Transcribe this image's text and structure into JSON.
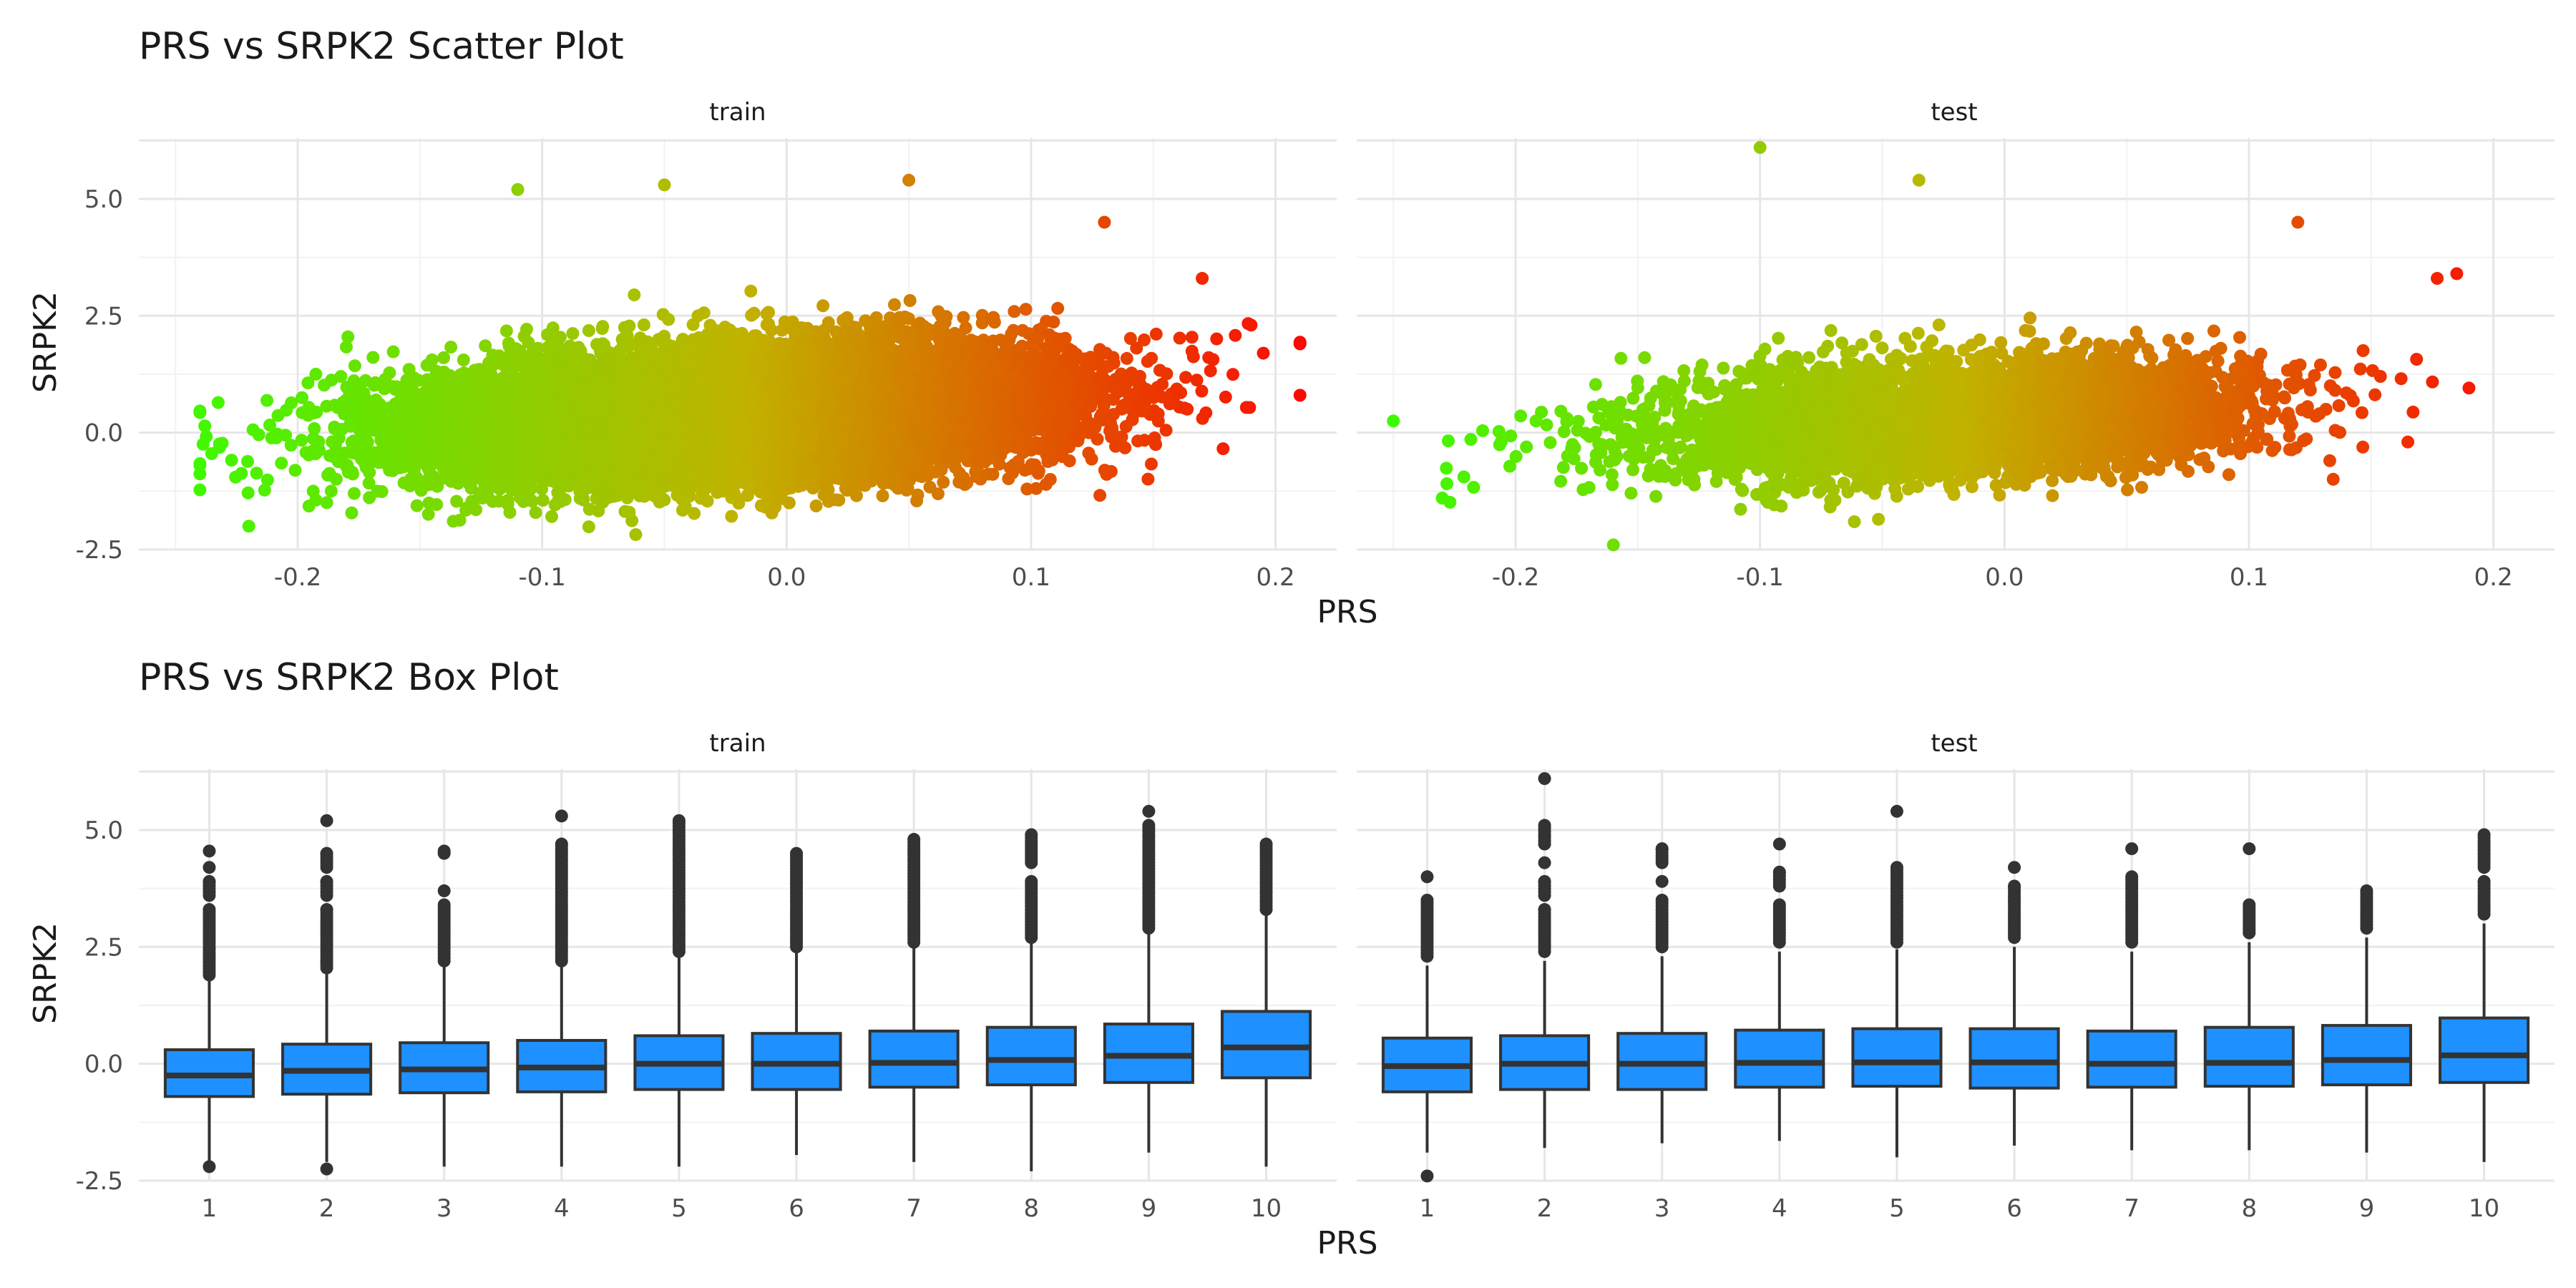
{
  "chart_data": [
    {
      "type": "scatter",
      "title": "PRS vs SRPK2 Scatter Plot",
      "xlabel": "PRS",
      "ylabel": "SRPK2",
      "xlim": [
        -0.265,
        0.225
      ],
      "ylim": [
        -2.5,
        6.3
      ],
      "x_ticks": [
        "-0.2",
        "-0.1",
        "0.0",
        "0.1",
        "0.2"
      ],
      "x_tick_values": [
        -0.2,
        -0.1,
        0.0,
        0.1,
        0.2
      ],
      "y_ticks": [
        "-2.5",
        "0.0",
        "2.5",
        "5.0"
      ],
      "y_tick_values": [
        -2.5,
        0.0,
        2.5,
        5.0
      ],
      "grid": true,
      "color_scale": {
        "low": "#33ff00",
        "mid": "#c0b400",
        "high": "#ff0000",
        "encodes": "PRS"
      },
      "panels": [
        {
          "label": "train",
          "n_points_estimate": 17000,
          "x_mean": -0.02,
          "x_sd": 0.062,
          "y_mean": 0.2,
          "y_sd": 0.85,
          "x_range": [
            -0.24,
            0.21
          ],
          "y_range": [
            -2.3,
            5.4
          ],
          "extreme_points": [
            [
              0.21,
              1.9
            ],
            [
              0.21,
              0.8
            ],
            [
              0.195,
              1.7
            ],
            [
              0.19,
              2.3
            ],
            [
              0.17,
              3.3
            ],
            [
              -0.24,
              -0.7
            ],
            [
              -0.22,
              -2.0
            ],
            [
              -0.11,
              5.2
            ],
            [
              -0.05,
              5.3
            ],
            [
              0.05,
              5.4
            ],
            [
              0.13,
              4.5
            ]
          ]
        },
        {
          "label": "test",
          "n_points_estimate": 4500,
          "x_mean": -0.02,
          "x_sd": 0.062,
          "y_mean": 0.1,
          "y_sd": 0.8,
          "x_range": [
            -0.25,
            0.19
          ],
          "y_range": [
            -2.4,
            6.1
          ],
          "extreme_points": [
            [
              -0.25,
              0.25
            ],
            [
              -0.1,
              6.1
            ],
            [
              -0.035,
              5.4
            ],
            [
              0.185,
              3.4
            ],
            [
              0.177,
              3.3
            ],
            [
              0.12,
              4.5
            ],
            [
              -0.16,
              -2.4
            ],
            [
              -0.23,
              -1.4
            ],
            [
              0.165,
              -0.2
            ]
          ]
        }
      ]
    },
    {
      "type": "box",
      "title": "PRS vs SRPK2 Box Plot",
      "xlabel": "PRS",
      "ylabel": "SRPK2",
      "ylim": [
        -2.5,
        6.3
      ],
      "categories": [
        "1",
        "2",
        "3",
        "4",
        "5",
        "6",
        "7",
        "8",
        "9",
        "10"
      ],
      "y_ticks": [
        "-2.5",
        "0.0",
        "2.5",
        "5.0"
      ],
      "y_tick_values": [
        -2.5,
        0.0,
        2.5,
        5.0
      ],
      "grid": true,
      "box_color": "#1e90ff",
      "panels": [
        {
          "label": "train",
          "boxes": [
            {
              "q1": -0.7,
              "median": -0.25,
              "q3": 0.3,
              "whisker_low": -2.1,
              "whisker_high": 1.8,
              "outliers": [
                -2.2,
                1.9,
                2.1,
                2.3,
                2.5,
                2.7,
                2.9,
                3.1,
                3.3,
                3.6,
                3.9,
                4.2,
                4.55
              ]
            },
            {
              "q1": -0.65,
              "median": -0.15,
              "q3": 0.42,
              "whisker_low": -2.1,
              "whisker_high": 1.95,
              "outliers": [
                -2.25,
                2.05,
                2.2,
                2.4,
                2.6,
                2.8,
                3.0,
                3.3,
                3.6,
                3.9,
                4.2,
                4.5,
                5.2
              ]
            },
            {
              "q1": -0.62,
              "median": -0.12,
              "q3": 0.45,
              "whisker_low": -2.2,
              "whisker_high": 2.1,
              "outliers": [
                2.2,
                2.4,
                2.6,
                2.8,
                3.0,
                3.2,
                3.4,
                3.7,
                4.5,
                4.55
              ]
            },
            {
              "q1": -0.6,
              "median": -0.08,
              "q3": 0.5,
              "whisker_low": -2.2,
              "whisker_high": 2.1,
              "outliers": [
                2.2,
                2.4,
                2.6,
                2.8,
                3.0,
                3.2,
                3.4,
                3.6,
                3.8,
                4.0,
                4.2,
                4.4,
                4.6,
                4.7,
                5.3
              ]
            },
            {
              "q1": -0.55,
              "median": 0.0,
              "q3": 0.6,
              "whisker_low": -2.2,
              "whisker_high": 2.3,
              "outliers": [
                2.4,
                2.6,
                2.8,
                3.0,
                3.2,
                3.4,
                3.6,
                3.8,
                4.0,
                4.2,
                4.4,
                4.6,
                4.8,
                5.0,
                5.2
              ]
            },
            {
              "q1": -0.55,
              "median": 0.0,
              "q3": 0.65,
              "whisker_low": -1.95,
              "whisker_high": 2.4,
              "outliers": [
                2.5,
                2.7,
                2.9,
                3.1,
                3.3,
                3.5,
                3.7,
                3.9,
                4.1,
                4.3,
                4.5
              ]
            },
            {
              "q1": -0.5,
              "median": 0.02,
              "q3": 0.7,
              "whisker_low": -2.1,
              "whisker_high": 2.5,
              "outliers": [
                2.6,
                2.8,
                3.0,
                3.2,
                3.4,
                3.6,
                3.8,
                4.0,
                4.2,
                4.4,
                4.6,
                4.8
              ]
            },
            {
              "q1": -0.45,
              "median": 0.08,
              "q3": 0.78,
              "whisker_low": -2.3,
              "whisker_high": 2.6,
              "outliers": [
                2.7,
                2.9,
                3.1,
                3.3,
                3.5,
                3.7,
                3.9,
                4.3,
                4.5,
                4.7,
                4.9
              ]
            },
            {
              "q1": -0.4,
              "median": 0.17,
              "q3": 0.85,
              "whisker_low": -1.9,
              "whisker_high": 2.8,
              "outliers": [
                2.9,
                3.1,
                3.3,
                3.5,
                3.7,
                3.9,
                4.1,
                4.3,
                4.5,
                4.7,
                4.9,
                5.1,
                5.4
              ]
            },
            {
              "q1": -0.3,
              "median": 0.35,
              "q3": 1.12,
              "whisker_low": -2.2,
              "whisker_high": 3.2,
              "outliers": [
                3.3,
                3.5,
                3.7,
                3.9,
                4.1,
                4.3,
                4.5,
                4.7
              ]
            }
          ]
        },
        {
          "label": "test",
          "boxes": [
            {
              "q1": -0.6,
              "median": -0.05,
              "q3": 0.55,
              "whisker_low": -1.9,
              "whisker_high": 2.1,
              "outliers": [
                -2.4,
                2.3,
                2.5,
                2.7,
                2.9,
                3.1,
                3.3,
                3.5,
                4.0
              ]
            },
            {
              "q1": -0.55,
              "median": 0.0,
              "q3": 0.6,
              "whisker_low": -1.8,
              "whisker_high": 2.2,
              "outliers": [
                2.4,
                2.6,
                2.8,
                3.0,
                3.3,
                3.6,
                3.9,
                4.3,
                4.7,
                4.9,
                5.1,
                6.1
              ]
            },
            {
              "q1": -0.55,
              "median": 0.0,
              "q3": 0.65,
              "whisker_low": -1.7,
              "whisker_high": 2.3,
              "outliers": [
                2.5,
                2.7,
                2.9,
                3.1,
                3.3,
                3.5,
                3.9,
                4.3,
                4.6
              ]
            },
            {
              "q1": -0.5,
              "median": 0.02,
              "q3": 0.72,
              "whisker_low": -1.65,
              "whisker_high": 2.4,
              "outliers": [
                2.6,
                2.8,
                3.0,
                3.2,
                3.4,
                3.8,
                4.1,
                4.7
              ]
            },
            {
              "q1": -0.48,
              "median": 0.03,
              "q3": 0.75,
              "whisker_low": -2.0,
              "whisker_high": 2.45,
              "outliers": [
                2.6,
                2.8,
                3.0,
                3.2,
                3.4,
                3.6,
                3.8,
                4.0,
                4.2,
                5.4
              ]
            },
            {
              "q1": -0.52,
              "median": 0.03,
              "q3": 0.75,
              "whisker_low": -1.75,
              "whisker_high": 2.5,
              "outliers": [
                2.7,
                2.9,
                3.1,
                3.3,
                3.5,
                3.8,
                4.2
              ]
            },
            {
              "q1": -0.5,
              "median": 0.0,
              "q3": 0.7,
              "whisker_low": -1.85,
              "whisker_high": 2.4,
              "outliers": [
                2.6,
                2.8,
                3.0,
                3.2,
                3.4,
                3.6,
                3.8,
                4.0,
                4.6
              ]
            },
            {
              "q1": -0.48,
              "median": 0.02,
              "q3": 0.78,
              "whisker_low": -1.85,
              "whisker_high": 2.6,
              "outliers": [
                2.8,
                3.0,
                3.2,
                3.4,
                4.6
              ]
            },
            {
              "q1": -0.45,
              "median": 0.08,
              "q3": 0.82,
              "whisker_low": -1.9,
              "whisker_high": 2.7,
              "outliers": [
                2.9,
                3.1,
                3.3,
                3.5,
                3.7
              ]
            },
            {
              "q1": -0.4,
              "median": 0.18,
              "q3": 0.98,
              "whisker_low": -2.1,
              "whisker_high": 3.0,
              "outliers": [
                3.2,
                3.4,
                3.6,
                3.9,
                4.2,
                4.5,
                4.7,
                4.9
              ]
            }
          ]
        }
      ]
    }
  ]
}
